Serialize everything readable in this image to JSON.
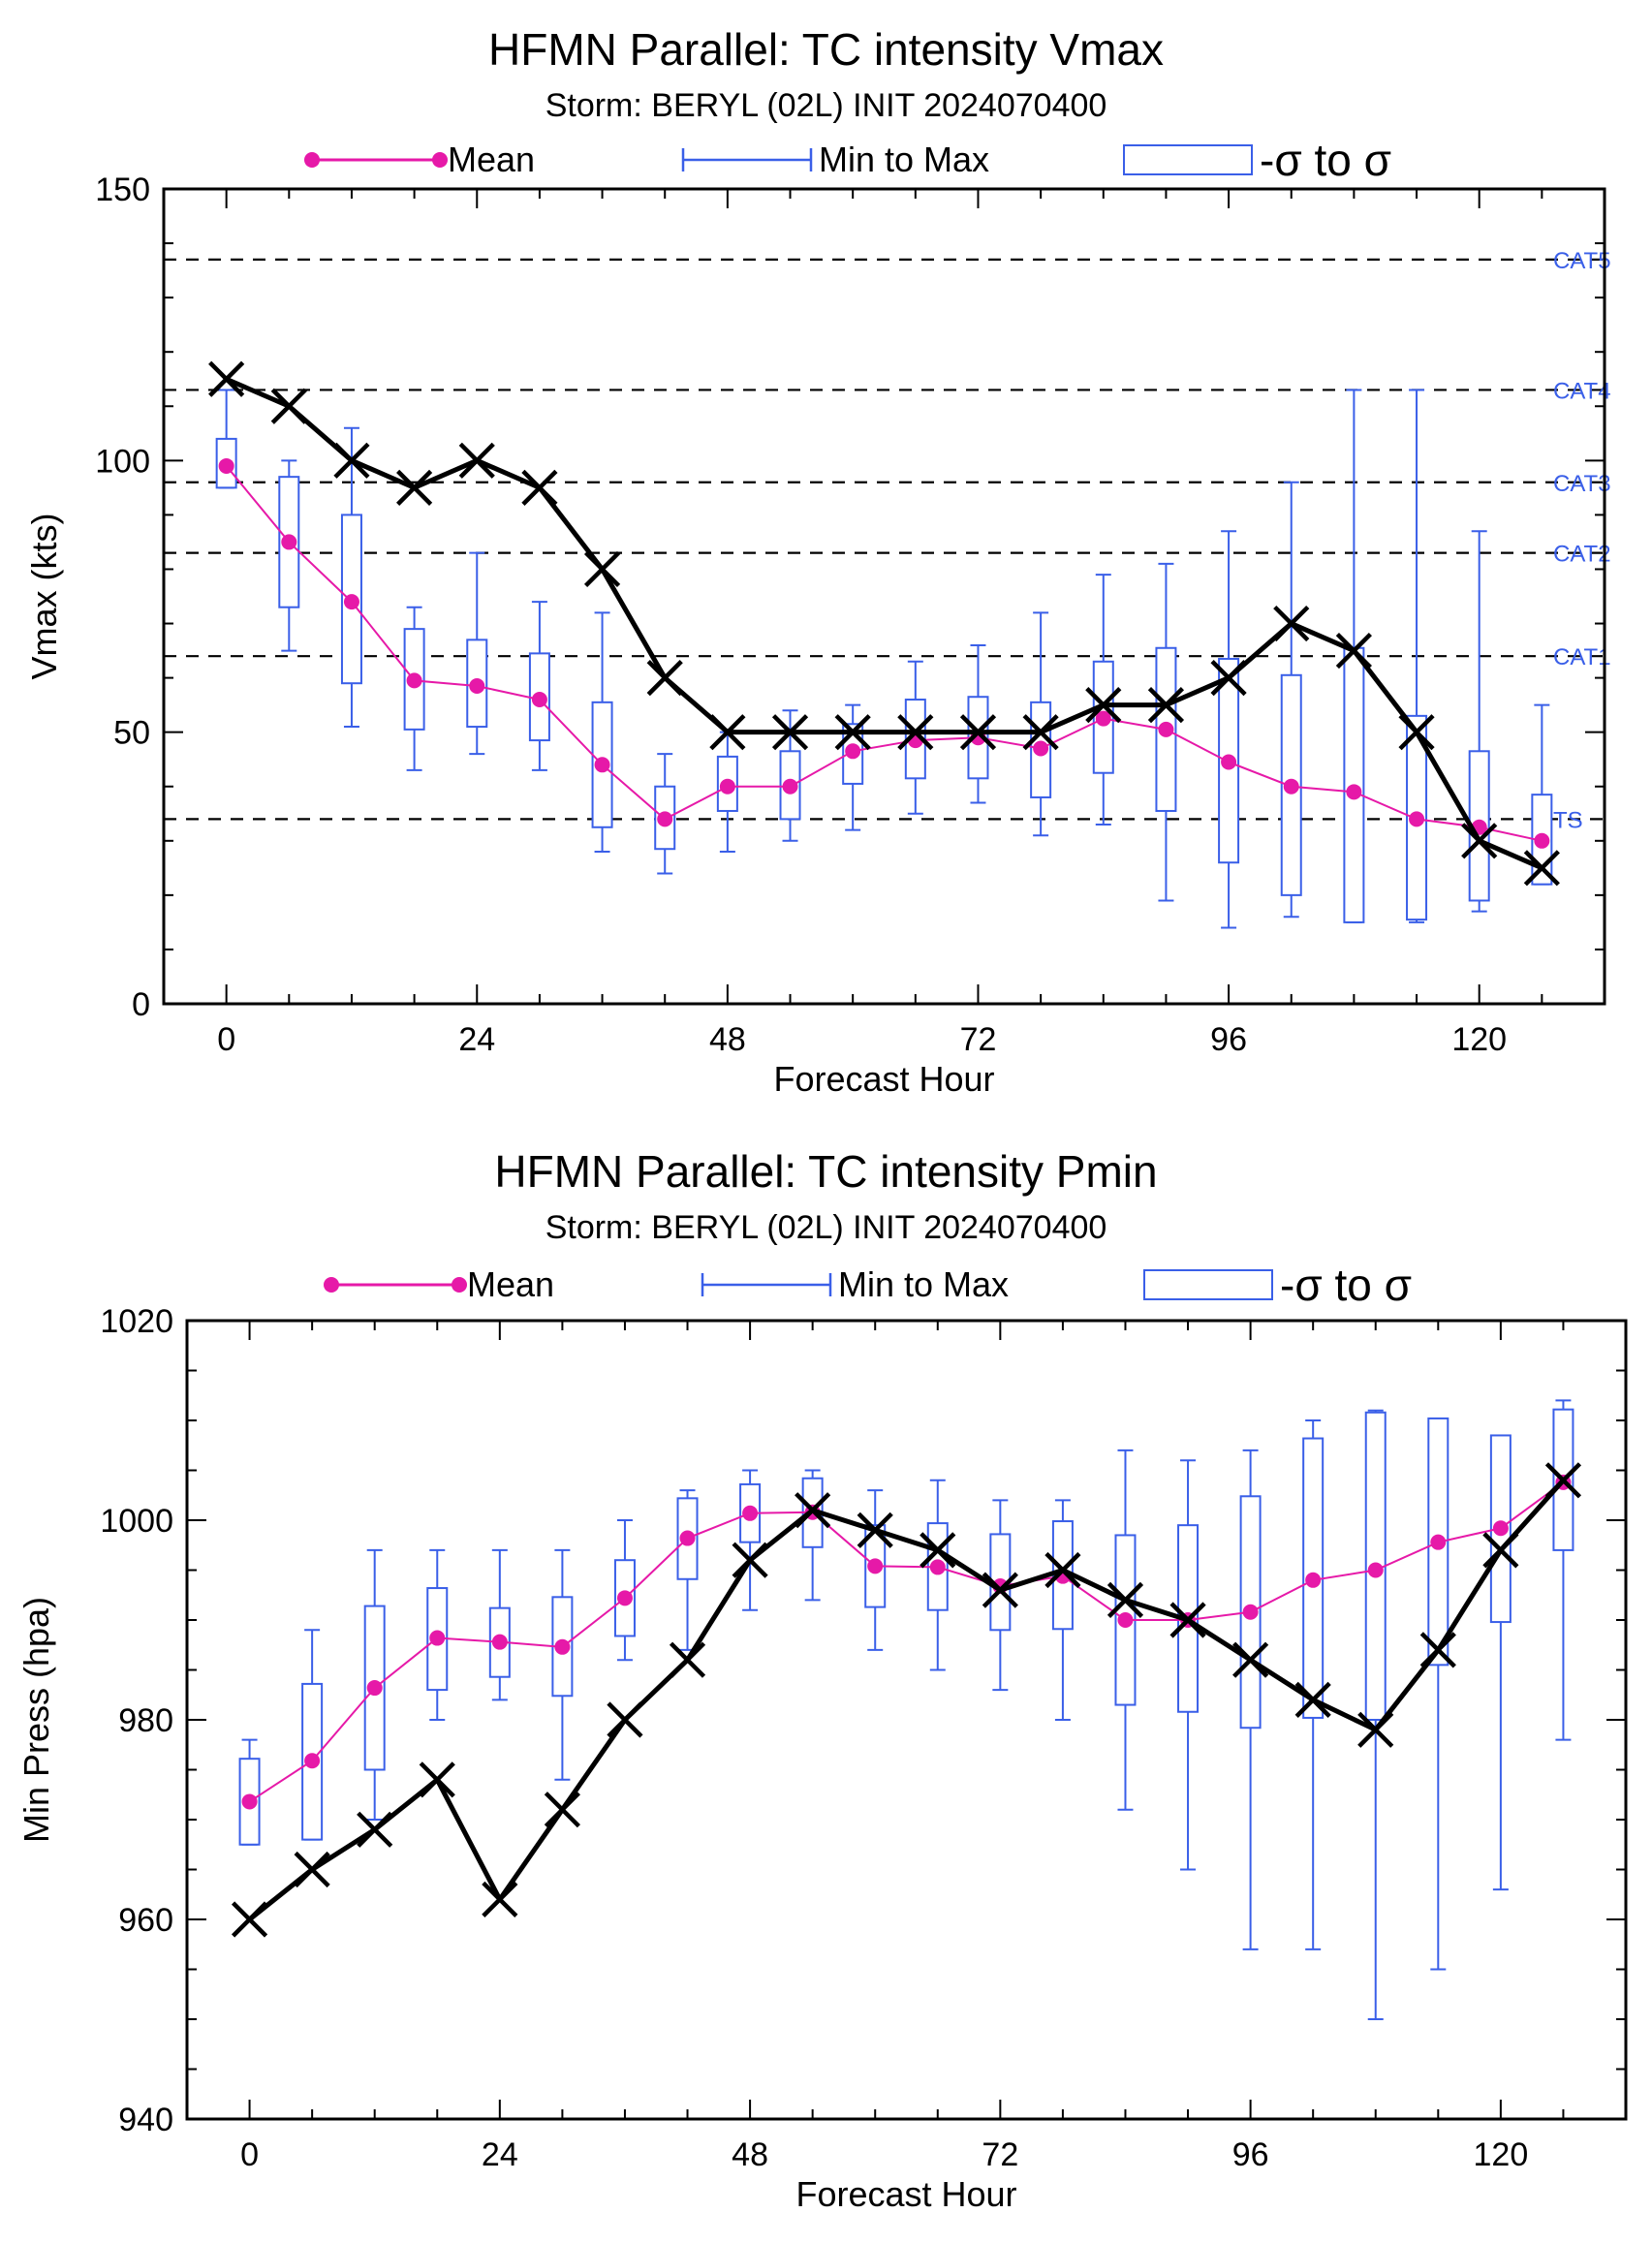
{
  "chart_data": [
    {
      "type": "line",
      "title": "HFMN Parallel: TC intensity Vmax",
      "subtitle": "Storm: BERYL (02L) INIT 2024070400",
      "xlabel": "Forecast Hour",
      "ylabel": "Vmax (kts)",
      "xlim": [
        -6,
        132
      ],
      "ylim": [
        0,
        150
      ],
      "xticks": [
        0,
        24,
        48,
        72,
        96,
        120
      ],
      "yticks": [
        0,
        50,
        100,
        150
      ],
      "legend": {
        "placement": "top",
        "mean": "Mean",
        "range": "Min to Max",
        "sigma": "-σ to σ"
      },
      "thresholds": [
        {
          "label": "CAT5",
          "value": 137
        },
        {
          "label": "CAT4",
          "value": 113
        },
        {
          "label": "CAT3",
          "value": 96
        },
        {
          "label": "CAT2",
          "value": 83
        },
        {
          "label": "CAT1",
          "value": 64
        },
        {
          "label": "TS",
          "value": 34
        }
      ],
      "x": [
        0,
        6,
        12,
        18,
        24,
        30,
        36,
        42,
        48,
        54,
        60,
        66,
        72,
        78,
        84,
        90,
        96,
        102,
        108,
        114,
        120,
        126
      ],
      "series": [
        {
          "name": "Mean",
          "color": "#e619a8",
          "values": [
            99,
            85,
            74,
            59.5,
            58.5,
            56,
            44,
            34,
            40,
            40,
            46.5,
            48.5,
            49,
            47,
            52.5,
            50.5,
            44.5,
            40,
            39,
            34,
            32.5,
            30
          ]
        },
        {
          "color": "#000000",
          "marker": "x",
          "values": [
            115,
            110,
            100,
            95,
            100,
            95,
            80,
            60,
            50,
            50,
            50,
            50,
            50,
            50,
            55,
            55,
            60,
            70,
            65,
            50,
            30,
            25
          ]
        }
      ],
      "ranges": {
        "color": "#3a5fe8",
        "min": [
          95,
          65,
          51,
          43,
          46,
          43,
          28,
          24,
          28,
          30,
          32,
          35,
          37,
          31,
          33,
          19,
          14,
          16,
          15,
          15,
          17,
          22
        ],
        "max": [
          113,
          100,
          106,
          73,
          83,
          74,
          72,
          46,
          50,
          54,
          55,
          63,
          66,
          72,
          79,
          81,
          87,
          96,
          113,
          113,
          87,
          55
        ],
        "sigma_low": [
          95,
          73,
          59,
          50.5,
          51,
          48.5,
          32.5,
          28.5,
          35.5,
          34,
          40.5,
          41.5,
          41.5,
          38,
          42.5,
          35.5,
          26,
          20,
          15,
          15.5,
          19,
          22
        ],
        "sigma_high": [
          104,
          97,
          90,
          69,
          67,
          64.5,
          55.5,
          40,
          45.5,
          46.5,
          51.5,
          56,
          56.5,
          55.5,
          63,
          65.5,
          63.5,
          60.5,
          65.5,
          53,
          46.5,
          38.5
        ]
      }
    },
    {
      "type": "line",
      "title": "HFMN Parallel: TC intensity Pmin",
      "subtitle": "Storm: BERYL (02L) INIT 2024070400",
      "xlabel": "Forecast Hour",
      "ylabel": "Min Press (hpa)",
      "xlim": [
        -6,
        132
      ],
      "ylim": [
        940,
        1020
      ],
      "xticks": [
        0,
        24,
        48,
        72,
        96,
        120
      ],
      "yticks": [
        940,
        960,
        980,
        1000,
        1020
      ],
      "legend": {
        "placement": "top",
        "mean": "Mean",
        "range": "Min to Max",
        "sigma": "-σ to σ"
      },
      "x": [
        0,
        6,
        12,
        18,
        24,
        30,
        36,
        42,
        48,
        54,
        60,
        66,
        72,
        78,
        84,
        90,
        96,
        102,
        108,
        114,
        120,
        126
      ],
      "series": [
        {
          "name": "Mean",
          "color": "#e619a8",
          "values": [
            971.8,
            975.9,
            983.2,
            988.2,
            987.8,
            987.3,
            992.2,
            998.2,
            1000.7,
            1000.8,
            995.4,
            995.3,
            993.4,
            994.4,
            990,
            990,
            990.8,
            994,
            995,
            997.8,
            999.2,
            1003.8
          ]
        },
        {
          "color": "#000000",
          "marker": "x",
          "values": [
            960,
            965,
            969,
            974,
            962,
            971,
            980,
            986,
            996,
            1001,
            999,
            997,
            993,
            995,
            992,
            990,
            986,
            982,
            979,
            987,
            997,
            1004
          ]
        }
      ],
      "ranges": {
        "color": "#3a5fe8",
        "min": [
          967.5,
          968,
          970,
          980,
          982,
          974,
          986,
          987,
          991,
          992,
          987,
          985,
          983,
          980,
          971,
          965,
          957,
          957,
          950,
          955,
          963,
          978
        ],
        "max": [
          978,
          989,
          997,
          997,
          997,
          997,
          1000,
          1003,
          1005,
          1005,
          1003,
          1004,
          1002,
          1002,
          1007,
          1006,
          1007,
          1010,
          1011,
          1010,
          1008.5,
          1012
        ],
        "sigma_low": [
          967.5,
          968,
          975,
          983,
          984.3,
          982.4,
          988.4,
          994.1,
          997.8,
          997.3,
          991.3,
          991,
          989,
          989.1,
          981.5,
          980.8,
          979.2,
          980.2,
          980,
          985.5,
          989.8,
          997
        ],
        "sigma_high": [
          976.1,
          983.6,
          991.4,
          993.2,
          991.2,
          992.3,
          996,
          1002.2,
          1003.6,
          1004.2,
          999.5,
          999.7,
          998.6,
          999.9,
          998.5,
          999.5,
          1002.4,
          1008.2,
          1010.8,
          1010.2,
          1008.5,
          1011.1
        ]
      }
    }
  ]
}
